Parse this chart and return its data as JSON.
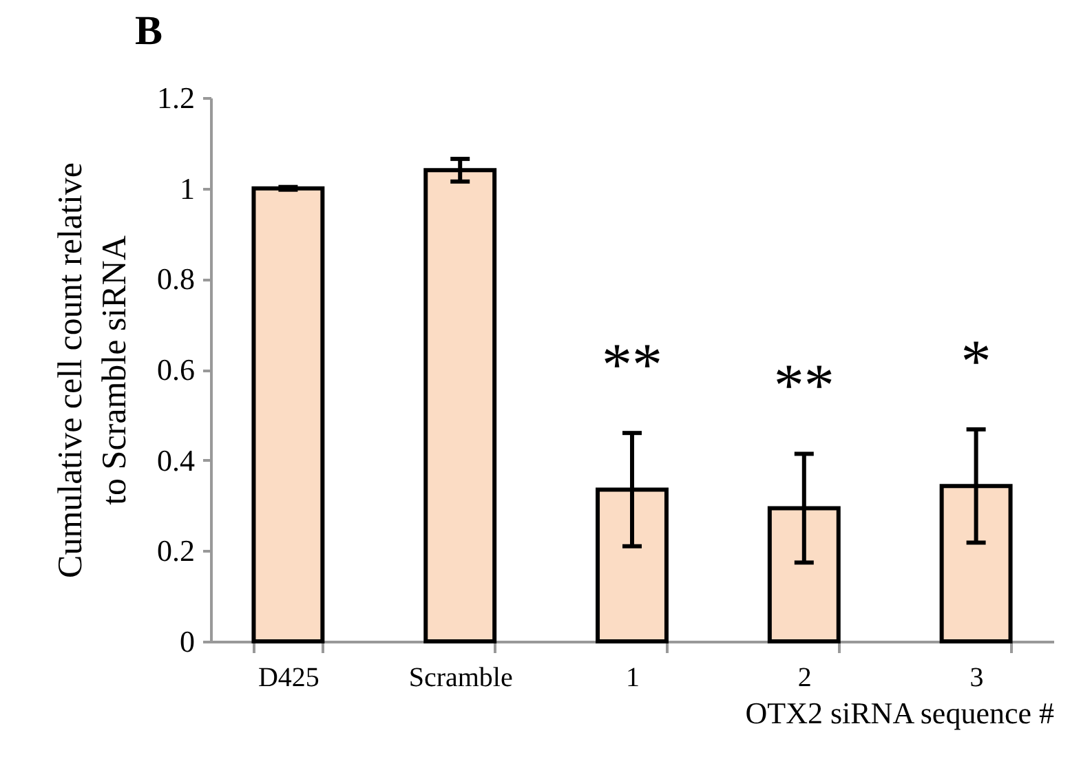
{
  "chart_data": {
    "type": "bar",
    "title": "B",
    "xlabel": "OTX2 siRNA sequence #",
    "ylabel": "Cumulative cell count relative\nto Scramble siRNA",
    "categories": [
      "D425",
      "Scramble",
      "1",
      "2",
      "3"
    ],
    "values": [
      1.0,
      1.04,
      0.335,
      0.294,
      0.343
    ],
    "errors": [
      0.003,
      0.025,
      0.125,
      0.12,
      0.125
    ],
    "color": "#fbdcc4",
    "ylim": [
      0,
      1.2
    ],
    "yticks": [
      0,
      0.2,
      0.4,
      0.6,
      0.8,
      1,
      1.2
    ],
    "grid": false,
    "annotations": [
      "**",
      "**",
      "*"
    ]
  }
}
